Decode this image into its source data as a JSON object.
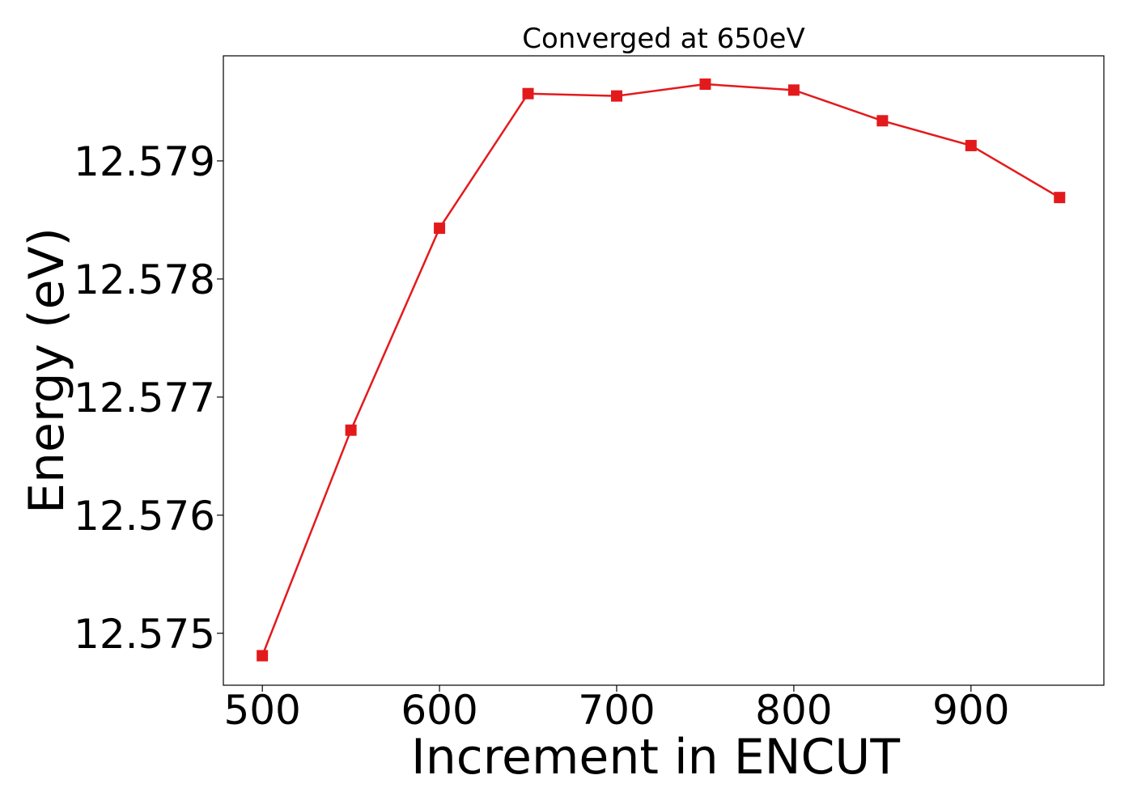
{
  "chart_data": {
    "type": "line",
    "title": "Converged at 650eV",
    "xlabel": "Increment in ENCUT",
    "ylabel": "Energy (eV)",
    "xlim": [
      478,
      975
    ],
    "ylim": [
      12.57456,
      12.57989
    ],
    "xticks": [
      500,
      600,
      700,
      800,
      900
    ],
    "yticks": [
      12.575,
      12.576,
      12.577,
      12.578,
      12.579
    ],
    "ytick_labels": [
      "12.575",
      "12.576",
      "12.577",
      "12.578",
      "12.579"
    ],
    "grid": false,
    "series": [
      {
        "color": "#e31a1c",
        "marker": "square",
        "x": [
          500,
          550,
          600,
          650,
          700,
          750,
          800,
          850,
          900,
          950
        ],
        "y": [
          12.57481,
          12.57672,
          12.57843,
          12.57957,
          12.57955,
          12.57965,
          12.5796,
          12.57934,
          12.57913,
          12.57869
        ]
      }
    ]
  }
}
